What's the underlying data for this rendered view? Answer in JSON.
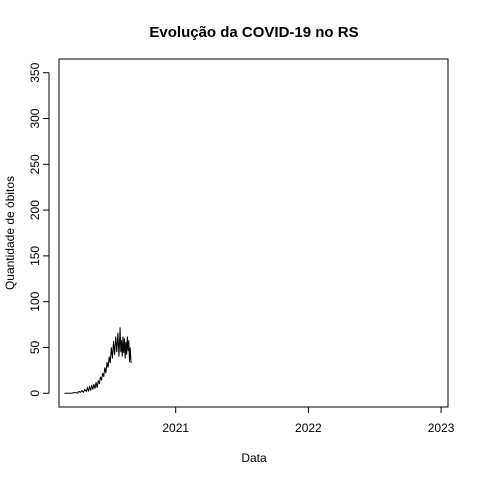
{
  "chart_data": {
    "type": "line",
    "title": "Evolução da COVID-19 no RS",
    "xlabel": "Data",
    "ylabel": "Quantidade de óbitos",
    "x_ticks": [
      "2021",
      "2022",
      "2023"
    ],
    "y_ticks": [
      0,
      50,
      100,
      150,
      200,
      250,
      300,
      350
    ],
    "ylim": [
      -15,
      365
    ],
    "xlim": [
      "2020-02-15",
      "2023-01-20"
    ],
    "series": [
      {
        "color": "#000000",
        "points": [
          [
            "2020-03-01",
            0
          ],
          [
            "2020-03-10",
            0
          ],
          [
            "2020-03-20",
            0
          ],
          [
            "2020-03-31",
            1
          ],
          [
            "2020-04-05",
            0
          ],
          [
            "2020-04-10",
            2
          ],
          [
            "2020-04-14",
            1
          ],
          [
            "2020-04-18",
            3
          ],
          [
            "2020-04-22",
            1
          ],
          [
            "2020-04-26",
            4
          ],
          [
            "2020-04-30",
            2
          ],
          [
            "2020-05-03",
            6
          ],
          [
            "2020-05-06",
            2
          ],
          [
            "2020-05-09",
            8
          ],
          [
            "2020-05-12",
            3
          ],
          [
            "2020-05-15",
            9
          ],
          [
            "2020-05-18",
            4
          ],
          [
            "2020-05-21",
            10
          ],
          [
            "2020-05-24",
            5
          ],
          [
            "2020-05-27",
            12
          ],
          [
            "2020-05-30",
            6
          ],
          [
            "2020-06-02",
            14
          ],
          [
            "2020-06-05",
            10
          ],
          [
            "2020-06-08",
            18
          ],
          [
            "2020-06-11",
            14
          ],
          [
            "2020-06-14",
            22
          ],
          [
            "2020-06-17",
            18
          ],
          [
            "2020-06-20",
            28
          ],
          [
            "2020-06-23",
            22
          ],
          [
            "2020-06-26",
            34
          ],
          [
            "2020-06-29",
            28
          ],
          [
            "2020-07-02",
            40
          ],
          [
            "2020-07-05",
            33
          ],
          [
            "2020-07-08",
            50
          ],
          [
            "2020-07-11",
            38
          ],
          [
            "2020-07-14",
            57
          ],
          [
            "2020-07-17",
            42
          ],
          [
            "2020-07-20",
            62
          ],
          [
            "2020-07-23",
            45
          ],
          [
            "2020-07-26",
            66
          ],
          [
            "2020-07-29",
            40
          ],
          [
            "2020-08-01",
            72
          ],
          [
            "2020-08-03",
            45
          ],
          [
            "2020-08-05",
            58
          ],
          [
            "2020-08-07",
            40
          ],
          [
            "2020-08-09",
            62
          ],
          [
            "2020-08-11",
            44
          ],
          [
            "2020-08-13",
            60
          ],
          [
            "2020-08-15",
            38
          ],
          [
            "2020-08-17",
            56
          ],
          [
            "2020-08-19",
            42
          ],
          [
            "2020-08-21",
            62
          ],
          [
            "2020-08-23",
            46
          ],
          [
            "2020-08-25",
            58
          ],
          [
            "2020-08-27",
            34
          ],
          [
            "2020-08-29",
            50
          ],
          [
            "2020-08-31",
            33
          ]
        ]
      }
    ],
    "grid": false,
    "legend": "none"
  }
}
